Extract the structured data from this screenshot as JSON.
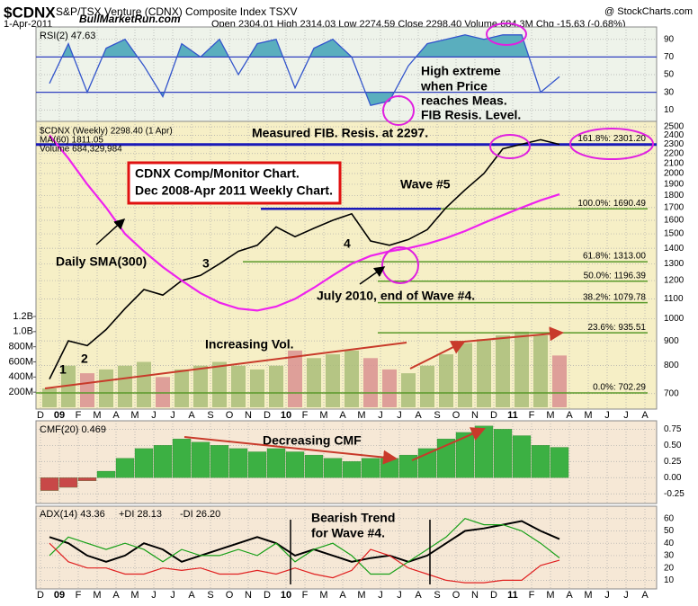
{
  "header": {
    "symbol": "$CDNX",
    "name": "S&P/TSX Venture (CDNX) Composite Index TSXV",
    "source": "@ StockCharts.com",
    "date": "1-Apr-2011",
    "site": "BullMarketRun.com",
    "quote": "Open 2304.01 High 2314.03 Low 2274.59 Close 2298.40 Volume 684.3M Chg -15.63 (-0.68%)"
  },
  "chart_data": [
    {
      "type": "line",
      "title": "RSI(2) 47.63",
      "color": "#3355cc",
      "fill_color": "#5aaebe",
      "background": "#eef3ea",
      "values": [
        40,
        85,
        30,
        80,
        90,
        60,
        25,
        85,
        70,
        90,
        50,
        85,
        90,
        35,
        80,
        90,
        70,
        15,
        20,
        60,
        85,
        90,
        95,
        90,
        95,
        95,
        30,
        47.63,
        null,
        null,
        null,
        null,
        null
      ],
      "ylim": [
        -3,
        104
      ],
      "yticks": [
        10,
        30,
        50,
        70,
        90
      ],
      "bands": [
        30,
        70
      ],
      "grid": true,
      "annotation": [
        "High extreme",
        "when Price",
        "reaches Meas.",
        "FIB Resis. Level."
      ]
    },
    {
      "type": "price",
      "background": "#f6efc6",
      "log_scale": true,
      "grid": true,
      "categories": [
        "D",
        "09",
        "F",
        "M",
        "A",
        "M",
        "J",
        "J",
        "A",
        "S",
        "O",
        "N",
        "D",
        "10",
        "F",
        "M",
        "A",
        "M",
        "J",
        "J",
        "A",
        "S",
        "O",
        "N",
        "D",
        "11",
        "F",
        "M",
        "A",
        "M",
        "J",
        "J",
        "A"
      ],
      "series": [
        {
          "name": "$CDNX (Weekly) 2298.40 (1 Apr)",
          "color": "#000000",
          "values": [
            750,
            900,
            880,
            950,
            1050,
            1150,
            1120,
            1200,
            1230,
            1300,
            1380,
            1420,
            1550,
            1480,
            1540,
            1600,
            1650,
            1450,
            1420,
            1460,
            1530,
            1700,
            1850,
            2000,
            2250,
            2300,
            2350,
            2298.4,
            null,
            null,
            null,
            null,
            null
          ]
        },
        {
          "name": "MA(60) 1811.05",
          "color": "#ee22ee",
          "values": [
            2400,
            2150,
            1900,
            1700,
            1500,
            1380,
            1280,
            1200,
            1130,
            1080,
            1050,
            1040,
            1060,
            1100,
            1160,
            1230,
            1300,
            1350,
            1380,
            1400,
            1430,
            1470,
            1520,
            1580,
            1640,
            1700,
            1760,
            1811.05,
            null,
            null,
            null,
            null,
            null
          ]
        },
        {
          "name": "Volume 684,329,984",
          "color": "#d99090",
          "up_color": "#a9bd78",
          "axis": "y2",
          "values": [
            250,
            550,
            450,
            500,
            550,
            600,
            400,
            500,
            550,
            600,
            550,
            500,
            550,
            750,
            650,
            700,
            750,
            650,
            500,
            450,
            550,
            700,
            850,
            900,
            950,
            1000,
            950,
            684.33,
            null,
            null,
            null,
            null,
            null
          ]
        }
      ],
      "ylim": [
        650,
        2565
      ],
      "yticks": [
        700,
        800,
        900,
        1000,
        1100,
        1200,
        1300,
        1400,
        1500,
        1600,
        1700,
        1800,
        1900,
        2000,
        2100,
        2200,
        2300,
        2400,
        2500
      ],
      "y2lim": [
        0,
        1200
      ],
      "y2ticks": [
        {
          "value": 200,
          "label": "200M"
        },
        {
          "value": 400,
          "label": "400M"
        },
        {
          "value": 600,
          "label": "600M"
        },
        {
          "value": 800,
          "label": "800M"
        },
        {
          "value": 1000,
          "label": "1.0B"
        },
        {
          "value": 1200,
          "label": "1.2B"
        }
      ],
      "resistance": 2297,
      "resistance_color": "#1a1ab8",
      "fib_levels": [
        2301.2,
        1690.49,
        1313.0,
        1196.39,
        1079.78,
        935.51,
        702.29
      ],
      "fib_labels": [
        "161.8%: 2301.20",
        "100.0%: 1690.49",
        "61.8%: 1313.00",
        "50.0%: 1196.39",
        "38.2%: 1079.78",
        "23.6%: 935.51",
        "0.0%: 702.29"
      ],
      "fib_color": "#5a9a2a",
      "annotations": [
        "Measured FIB. Resis. at 2297.",
        "CDNX Comp/Monitor Chart.",
        "Dec 2008-Apr 2011 Weekly Chart.",
        "Wave #5",
        "Daily SMA(300)",
        "1",
        "2",
        "3",
        "4",
        "July 2010, end of Wave #4.",
        "Increasing Vol."
      ]
    },
    {
      "type": "bar",
      "title": "CMF(20) 0.469",
      "color": "#3cb043",
      "negative_color": "#c84848",
      "background": "#f6e8d6",
      "values": [
        -0.2,
        -0.15,
        -0.05,
        0.1,
        0.3,
        0.45,
        0.5,
        0.6,
        0.55,
        0.5,
        0.45,
        0.4,
        0.45,
        0.4,
        0.35,
        0.3,
        0.25,
        0.3,
        0.3,
        0.35,
        0.45,
        0.6,
        0.7,
        0.8,
        0.75,
        0.65,
        0.5,
        0.469,
        null,
        null,
        null,
        null,
        null
      ],
      "ylim": [
        -0.4,
        0.88
      ],
      "yticks": [
        -0.25,
        {
          "value": 0,
          "label": "0.00"
        },
        0.25,
        {
          "value": 0.5,
          "label": "0.50"
        },
        0.75
      ],
      "grid": true,
      "annotation": [
        "Decreasing CMF"
      ]
    },
    {
      "type": "line",
      "background": "#f6e8d6",
      "grid": true,
      "categories": [
        "D",
        "09",
        "F",
        "M",
        "A",
        "M",
        "J",
        "J",
        "A",
        "S",
        "O",
        "N",
        "D",
        "10",
        "F",
        "M",
        "A",
        "M",
        "J",
        "J",
        "A",
        "S",
        "O",
        "N",
        "D",
        "11",
        "F",
        "M",
        "A",
        "M",
        "J",
        "J",
        "A"
      ],
      "series": [
        {
          "name": "ADX(14) 43.36",
          "color": "#000000",
          "values": [
            45,
            40,
            30,
            25,
            30,
            40,
            35,
            25,
            30,
            35,
            40,
            45,
            40,
            30,
            35,
            30,
            25,
            28,
            30,
            25,
            30,
            40,
            50,
            52,
            55,
            58,
            50,
            43.36,
            null,
            null,
            null,
            null,
            null
          ]
        },
        {
          "name": "+DI 28.13",
          "color": "#18a018",
          "values": [
            30,
            45,
            40,
            35,
            40,
            35,
            25,
            35,
            30,
            30,
            35,
            30,
            40,
            25,
            35,
            40,
            30,
            15,
            15,
            25,
            35,
            45,
            60,
            55,
            55,
            50,
            40,
            28.13,
            null,
            null,
            null,
            null,
            null
          ]
        },
        {
          "name": "-DI 26.20",
          "color": "#e02020",
          "values": [
            40,
            25,
            20,
            20,
            15,
            15,
            20,
            18,
            20,
            15,
            15,
            18,
            15,
            20,
            15,
            12,
            18,
            35,
            30,
            20,
            15,
            10,
            8,
            8,
            10,
            10,
            22,
            26.2,
            null,
            null,
            null,
            null,
            null
          ]
        }
      ],
      "ylim": [
        3,
        70
      ],
      "yticks": [
        10,
        20,
        30,
        40,
        50,
        60
      ],
      "annotation": [
        "Bearish Trend",
        "for Wave #4."
      ]
    }
  ]
}
